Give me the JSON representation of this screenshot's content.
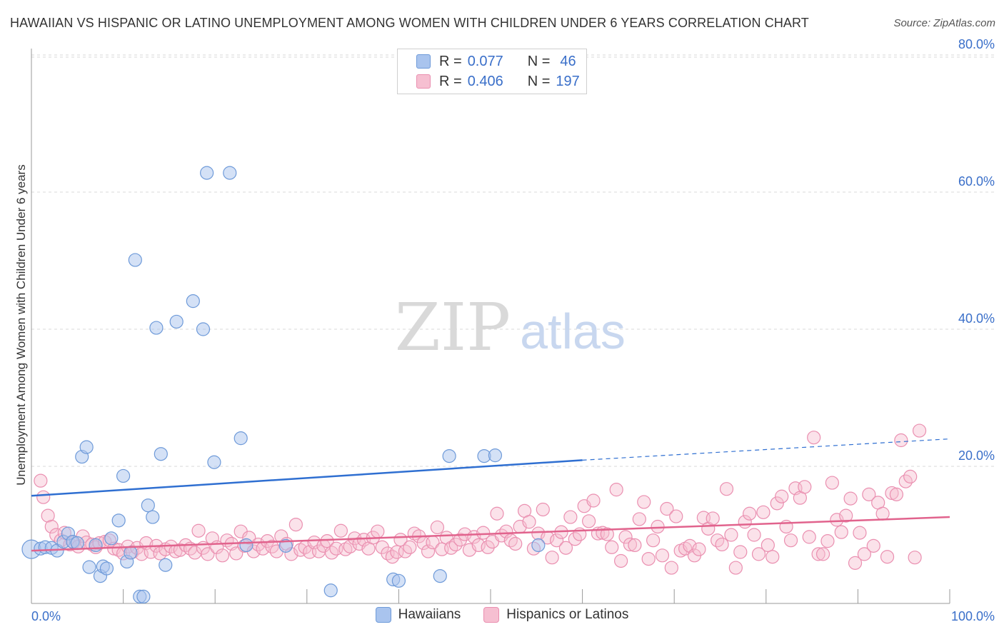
{
  "header": {
    "title": "HAWAIIAN VS HISPANIC OR LATINO UNEMPLOYMENT AMONG WOMEN WITH CHILDREN UNDER 6 YEARS CORRELATION CHART",
    "source": "Source: ZipAtlas.com"
  },
  "watermark": {
    "zip": "ZIP",
    "atlas": "atlas"
  },
  "colors": {
    "hawaiians_fill": "#a9c4ee",
    "hawaiians_stroke": "#6e9ad9",
    "hawaiians_line": "#2f6fd1",
    "hispanics_fill": "#f6bfd1",
    "hispanics_stroke": "#ea8fb0",
    "hispanics_line": "#e1638d",
    "axis_text": "#3a6fc9"
  },
  "legend_top": {
    "hawaiians": {
      "r_label": "R =",
      "r_value": "0.077",
      "n_label": "N =",
      "n_value": "46"
    },
    "hispanics": {
      "r_label": "R =",
      "r_value": "0.406",
      "n_label": "N =",
      "n_value": "197"
    }
  },
  "legend_bottom": {
    "hawaiians": "Hawaiians",
    "hispanics": "Hispanics or Latinos"
  },
  "chart_data": {
    "type": "scatter",
    "title": "HAWAIIAN VS HISPANIC OR LATINO UNEMPLOYMENT AMONG WOMEN WITH CHILDREN UNDER 6 YEARS CORRELATION CHART",
    "xlabel": "",
    "ylabel": "Unemployment Among Women with Children Under 6 years",
    "xlim": [
      0,
      100
    ],
    "ylim": [
      0,
      82
    ],
    "x_tick_labels": [
      {
        "x": 0,
        "label": "0.0%"
      },
      {
        "x": 100,
        "label": "100.0%"
      }
    ],
    "y_tick_labels": [
      {
        "y": 20,
        "label": "20.0%"
      },
      {
        "y": 40,
        "label": "40.0%"
      },
      {
        "y": 60,
        "label": "60.0%"
      },
      {
        "y": 80,
        "label": "80.0%"
      }
    ],
    "grid": true,
    "legend": "bottom",
    "series": [
      {
        "name": "Hawaiians",
        "trend": {
          "x0": 0,
          "y0": 15.7,
          "x1": 60,
          "y1": 20.9,
          "dashed_to_x": 100,
          "dashed_to_y": 24.0
        },
        "points": [
          [
            0,
            7.9
          ],
          [
            1.0,
            8.0
          ],
          [
            1.5,
            8.2
          ],
          [
            2.2,
            8.1
          ],
          [
            2.8,
            7.7
          ],
          [
            3.5,
            9.0
          ],
          [
            4.0,
            10.2
          ],
          [
            4.5,
            9.0
          ],
          [
            5.0,
            8.8
          ],
          [
            5.5,
            21.4
          ],
          [
            6.0,
            22.8
          ],
          [
            6.3,
            5.3
          ],
          [
            7.0,
            8.5
          ],
          [
            7.5,
            4.0
          ],
          [
            7.8,
            5.4
          ],
          [
            8.2,
            5.1
          ],
          [
            8.7,
            9.5
          ],
          [
            9.5,
            12.1
          ],
          [
            10.0,
            18.6
          ],
          [
            10.4,
            6.1
          ],
          [
            10.8,
            7.4
          ],
          [
            11.3,
            50.1
          ],
          [
            11.8,
            1.0
          ],
          [
            12.2,
            1.0
          ],
          [
            12.7,
            14.3
          ],
          [
            13.2,
            12.6
          ],
          [
            13.6,
            40.2
          ],
          [
            14.1,
            21.8
          ],
          [
            14.6,
            5.6
          ],
          [
            15.8,
            41.1
          ],
          [
            17.6,
            44.1
          ],
          [
            18.7,
            40.0
          ],
          [
            19.1,
            62.8
          ],
          [
            19.9,
            20.6
          ],
          [
            21.6,
            62.8
          ],
          [
            22.8,
            24.1
          ],
          [
            23.4,
            8.5
          ],
          [
            27.7,
            8.4
          ],
          [
            32.6,
            1.9
          ],
          [
            39.4,
            3.5
          ],
          [
            40.0,
            3.3
          ],
          [
            44.5,
            4.0
          ],
          [
            45.5,
            21.5
          ],
          [
            49.3,
            21.5
          ],
          [
            50.5,
            21.6
          ],
          [
            55.2,
            8.5
          ]
        ]
      },
      {
        "name": "Hispanics or Latinos",
        "trend": {
          "x0": 0,
          "y0": 7.7,
          "x1": 100,
          "y1": 12.6
        },
        "points": [
          [
            1.0,
            17.9
          ],
          [
            1.3,
            15.5
          ],
          [
            1.8,
            12.8
          ],
          [
            2.2,
            11.2
          ],
          [
            2.7,
            10.0
          ],
          [
            3.2,
            9.2
          ],
          [
            3.6,
            10.3
          ],
          [
            4.2,
            8.6
          ],
          [
            4.6,
            8.9
          ],
          [
            5.1,
            8.3
          ],
          [
            5.6,
            9.8
          ],
          [
            6.0,
            8.9
          ],
          [
            6.6,
            8.6
          ],
          [
            7.0,
            8.2
          ],
          [
            7.4,
            8.8
          ],
          [
            8.0,
            9.0
          ],
          [
            8.5,
            9.2
          ],
          [
            9.0,
            8.0
          ],
          [
            9.5,
            7.8
          ],
          [
            10.0,
            7.3
          ],
          [
            10.5,
            8.3
          ],
          [
            11.0,
            7.5
          ],
          [
            11.5,
            8.1
          ],
          [
            12.0,
            7.2
          ],
          [
            12.5,
            8.8
          ],
          [
            13.0,
            7.5
          ],
          [
            13.6,
            8.4
          ],
          [
            14.0,
            7.3
          ],
          [
            14.6,
            7.9
          ],
          [
            15.2,
            8.3
          ],
          [
            15.7,
            7.6
          ],
          [
            16.2,
            7.8
          ],
          [
            16.8,
            8.5
          ],
          [
            17.3,
            8.0
          ],
          [
            17.8,
            7.4
          ],
          [
            18.2,
            10.6
          ],
          [
            18.7,
            8.1
          ],
          [
            19.2,
            7.2
          ],
          [
            19.7,
            9.5
          ],
          [
            20.2,
            8.2
          ],
          [
            20.8,
            7.0
          ],
          [
            21.3,
            9.2
          ],
          [
            21.8,
            8.7
          ],
          [
            22.3,
            7.3
          ],
          [
            22.8,
            10.5
          ],
          [
            23.2,
            8.4
          ],
          [
            23.7,
            9.6
          ],
          [
            24.2,
            7.6
          ],
          [
            24.7,
            8.6
          ],
          [
            25.2,
            8.0
          ],
          [
            25.7,
            9.1
          ],
          [
            26.2,
            8.3
          ],
          [
            26.7,
            7.6
          ],
          [
            27.2,
            9.8
          ],
          [
            27.8,
            8.7
          ],
          [
            28.3,
            7.2
          ],
          [
            28.8,
            11.5
          ],
          [
            29.3,
            7.8
          ],
          [
            29.8,
            8.2
          ],
          [
            30.3,
            7.5
          ],
          [
            30.8,
            8.9
          ],
          [
            31.3,
            7.6
          ],
          [
            31.8,
            8.4
          ],
          [
            32.2,
            9.1
          ],
          [
            32.7,
            7.4
          ],
          [
            33.2,
            8.0
          ],
          [
            33.7,
            10.6
          ],
          [
            34.2,
            7.9
          ],
          [
            34.7,
            8.3
          ],
          [
            35.2,
            9.5
          ],
          [
            35.7,
            8.7
          ],
          [
            36.2,
            9.3
          ],
          [
            36.7,
            8.0
          ],
          [
            37.2,
            9.6
          ],
          [
            37.7,
            10.5
          ],
          [
            38.2,
            8.2
          ],
          [
            38.8,
            7.3
          ],
          [
            39.3,
            6.8
          ],
          [
            39.8,
            7.5
          ],
          [
            40.2,
            9.3
          ],
          [
            40.7,
            7.6
          ],
          [
            41.2,
            8.2
          ],
          [
            41.7,
            10.2
          ],
          [
            42.2,
            9.8
          ],
          [
            42.7,
            8.8
          ],
          [
            43.2,
            7.6
          ],
          [
            43.7,
            8.9
          ],
          [
            44.2,
            11.1
          ],
          [
            44.7,
            7.9
          ],
          [
            45.2,
            9.6
          ],
          [
            45.7,
            8.1
          ],
          [
            46.2,
            8.6
          ],
          [
            46.7,
            9.3
          ],
          [
            47.2,
            10.1
          ],
          [
            47.7,
            7.8
          ],
          [
            48.2,
            9.7
          ],
          [
            48.7,
            8.5
          ],
          [
            49.2,
            10.3
          ],
          [
            49.7,
            8.2
          ],
          [
            50.2,
            9.0
          ],
          [
            50.7,
            13.1
          ],
          [
            51.2,
            9.9
          ],
          [
            51.7,
            10.5
          ],
          [
            52.2,
            9.2
          ],
          [
            52.7,
            8.7
          ],
          [
            53.2,
            11.2
          ],
          [
            53.7,
            13.5
          ],
          [
            54.2,
            11.9
          ],
          [
            54.7,
            8.0
          ],
          [
            55.2,
            10.2
          ],
          [
            55.7,
            13.7
          ],
          [
            56.2,
            9.6
          ],
          [
            56.7,
            6.7
          ],
          [
            57.2,
            9.2
          ],
          [
            57.7,
            10.4
          ],
          [
            58.2,
            8.1
          ],
          [
            58.7,
            12.6
          ],
          [
            59.2,
            9.4
          ],
          [
            59.7,
            10.1
          ],
          [
            60.2,
            14.2
          ],
          [
            60.7,
            12.0
          ],
          [
            61.2,
            15.0
          ],
          [
            61.7,
            10.2
          ],
          [
            62.2,
            10.3
          ],
          [
            62.7,
            10.1
          ],
          [
            63.2,
            8.2
          ],
          [
            63.7,
            16.6
          ],
          [
            64.2,
            6.2
          ],
          [
            64.7,
            9.7
          ],
          [
            65.2,
            8.6
          ],
          [
            65.7,
            8.5
          ],
          [
            66.2,
            12.3
          ],
          [
            66.7,
            14.8
          ],
          [
            67.2,
            6.5
          ],
          [
            67.7,
            9.2
          ],
          [
            68.2,
            11.2
          ],
          [
            68.7,
            7.0
          ],
          [
            69.2,
            13.8
          ],
          [
            69.7,
            5.2
          ],
          [
            70.2,
            12.7
          ],
          [
            70.7,
            7.7
          ],
          [
            71.2,
            8.0
          ],
          [
            71.7,
            8.4
          ],
          [
            72.2,
            7.0
          ],
          [
            72.7,
            7.9
          ],
          [
            73.2,
            12.5
          ],
          [
            73.7,
            10.9
          ],
          [
            74.2,
            12.4
          ],
          [
            74.7,
            9.2
          ],
          [
            75.2,
            8.6
          ],
          [
            75.7,
            16.7
          ],
          [
            76.2,
            10.0
          ],
          [
            76.7,
            5.2
          ],
          [
            77.2,
            7.5
          ],
          [
            77.7,
            11.9
          ],
          [
            78.2,
            13.1
          ],
          [
            78.7,
            10.0
          ],
          [
            79.2,
            7.2
          ],
          [
            79.7,
            13.3
          ],
          [
            80.2,
            8.5
          ],
          [
            80.7,
            6.8
          ],
          [
            81.2,
            14.6
          ],
          [
            81.7,
            15.6
          ],
          [
            82.2,
            11.2
          ],
          [
            82.7,
            9.2
          ],
          [
            83.2,
            16.8
          ],
          [
            83.7,
            15.4
          ],
          [
            84.2,
            17.0
          ],
          [
            84.7,
            9.7
          ],
          [
            85.2,
            24.2
          ],
          [
            85.7,
            7.2
          ],
          [
            86.2,
            7.2
          ],
          [
            86.7,
            9.1
          ],
          [
            87.2,
            17.6
          ],
          [
            87.7,
            12.2
          ],
          [
            88.2,
            10.4
          ],
          [
            88.7,
            12.8
          ],
          [
            89.2,
            15.3
          ],
          [
            89.7,
            5.9
          ],
          [
            90.2,
            10.3
          ],
          [
            90.7,
            7.2
          ],
          [
            91.2,
            15.9
          ],
          [
            91.7,
            8.4
          ],
          [
            92.2,
            14.7
          ],
          [
            92.7,
            13.1
          ],
          [
            93.2,
            6.8
          ],
          [
            93.7,
            16.1
          ],
          [
            94.2,
            15.9
          ],
          [
            94.7,
            23.8
          ],
          [
            95.2,
            17.8
          ],
          [
            95.7,
            18.5
          ],
          [
            96.2,
            6.7
          ],
          [
            96.7,
            25.2
          ]
        ]
      }
    ]
  }
}
